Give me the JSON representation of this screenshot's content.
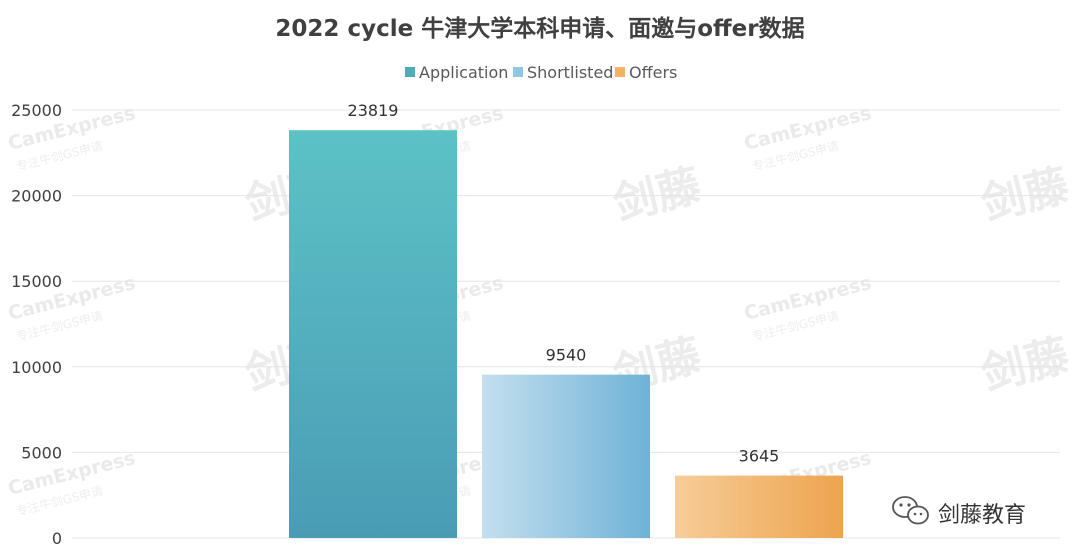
{
  "chart_data": {
    "type": "bar",
    "title": "2022 cycle 牛津大学本科申请、面邀与offer数据",
    "xlabel": "",
    "ylabel": "",
    "ylim": [
      0,
      25000
    ],
    "yticks": [
      0,
      5000,
      10000,
      15000,
      20000,
      25000
    ],
    "grid": true,
    "legend_position": "top-center",
    "series": [
      {
        "name": "Application",
        "values": [
          23819
        ],
        "color": "#4fb3bd"
      },
      {
        "name": "Shortlisted",
        "values": [
          9540
        ],
        "color": "#8cc4e0"
      },
      {
        "name": "Offers",
        "values": [
          3645
        ],
        "color": "#f2ae5c"
      }
    ],
    "data_labels": [
      "23819",
      "9540",
      "3645"
    ]
  },
  "watermark": {
    "brand_latin": "CamExpress",
    "slogan": "专注牛剑GS申请",
    "brand_cn": "剑藤"
  },
  "footer_brand": {
    "icon": "wechat-icon",
    "text": "剑藤教育"
  }
}
